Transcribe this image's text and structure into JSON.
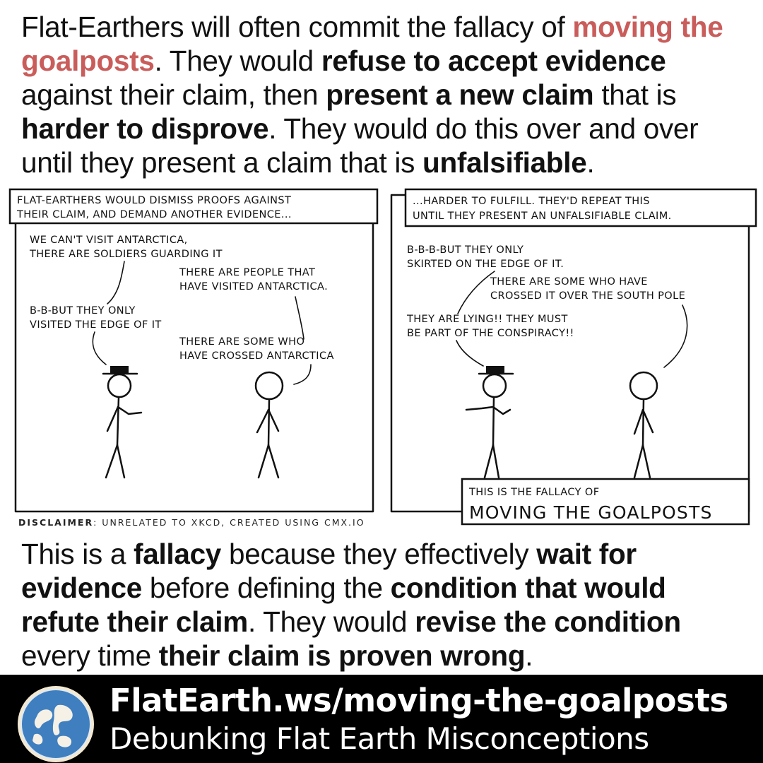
{
  "colors": {
    "accent": "#c95d5b",
    "footer_bg": "#000000",
    "text": "#111111"
  },
  "intro": {
    "t1": "Flat-Earthers will often commit the fallacy of ",
    "accent": "moving the goalposts",
    "t2": ". They would ",
    "b1": "refuse to accept evidence",
    "t3": " against their claim, then ",
    "b2": "present a new claim",
    "t4": " that is ",
    "b3": "harder to disprove",
    "t5": ". They would do this over and over until they present a claim that is ",
    "b4": "unfalsifiable",
    "t6": "."
  },
  "comic": {
    "panel1": {
      "caption": [
        "FLAT-EARTHERS WOULD DISMISS PROOFS AGAINST",
        "THEIR CLAIM, AND DEMAND ANOTHER EVIDENCE..."
      ],
      "speech1": [
        "WE CAN'T VISIT ANTARCTICA,",
        "THERE ARE SOLDIERS GUARDING IT"
      ],
      "speech2": [
        "THERE ARE PEOPLE THAT",
        "HAVE VISITED ANTARCTICA."
      ],
      "speech3": [
        "B-B-BUT THEY ONLY",
        "VISITED THE EDGE OF IT"
      ],
      "speech4": [
        "THERE ARE SOME WHO",
        "HAVE CROSSED ANTARCTICA"
      ]
    },
    "panel2": {
      "caption": [
        "...HARDER TO FULFILL. THEY'D REPEAT THIS",
        "UNTIL THEY PRESENT AN UNFALSIFIABLE CLAIM."
      ],
      "speech1": [
        "B-B-B-BUT THEY ONLY",
        "SKIRTED ON THE EDGE OF IT."
      ],
      "speech2": [
        "THERE ARE SOME WHO HAVE",
        "CROSSED IT OVER THE SOUTH POLE"
      ],
      "speech3": [
        "THEY ARE LYING!! THEY MUST",
        "BE PART OF THE CONSPIRACY!!"
      ],
      "footer_small": "THIS IS THE FALLACY OF",
      "footer_big": "MOVING THE GOALPOSTS"
    },
    "disclaimer_label": "DISCLAIMER",
    "disclaimer_text": ": UNRELATED TO XKCD, CREATED USING CMX.IO"
  },
  "outro": {
    "t1": "This is a ",
    "b1": "fallacy",
    "t2": " because they effectively ",
    "b2": "wait for evidence",
    "t3": " before defining the ",
    "b3": "condition that would refute their claim",
    "t4": ". They would ",
    "b4": "revise the condition",
    "t5": " every time ",
    "b5": "their claim is proven wrong",
    "t6": "."
  },
  "footer": {
    "url": "FlatEarth.ws/moving-the-goalposts",
    "tagline": "Debunking Flat Earth Misconceptions",
    "logo_icon": "globe-icon"
  }
}
